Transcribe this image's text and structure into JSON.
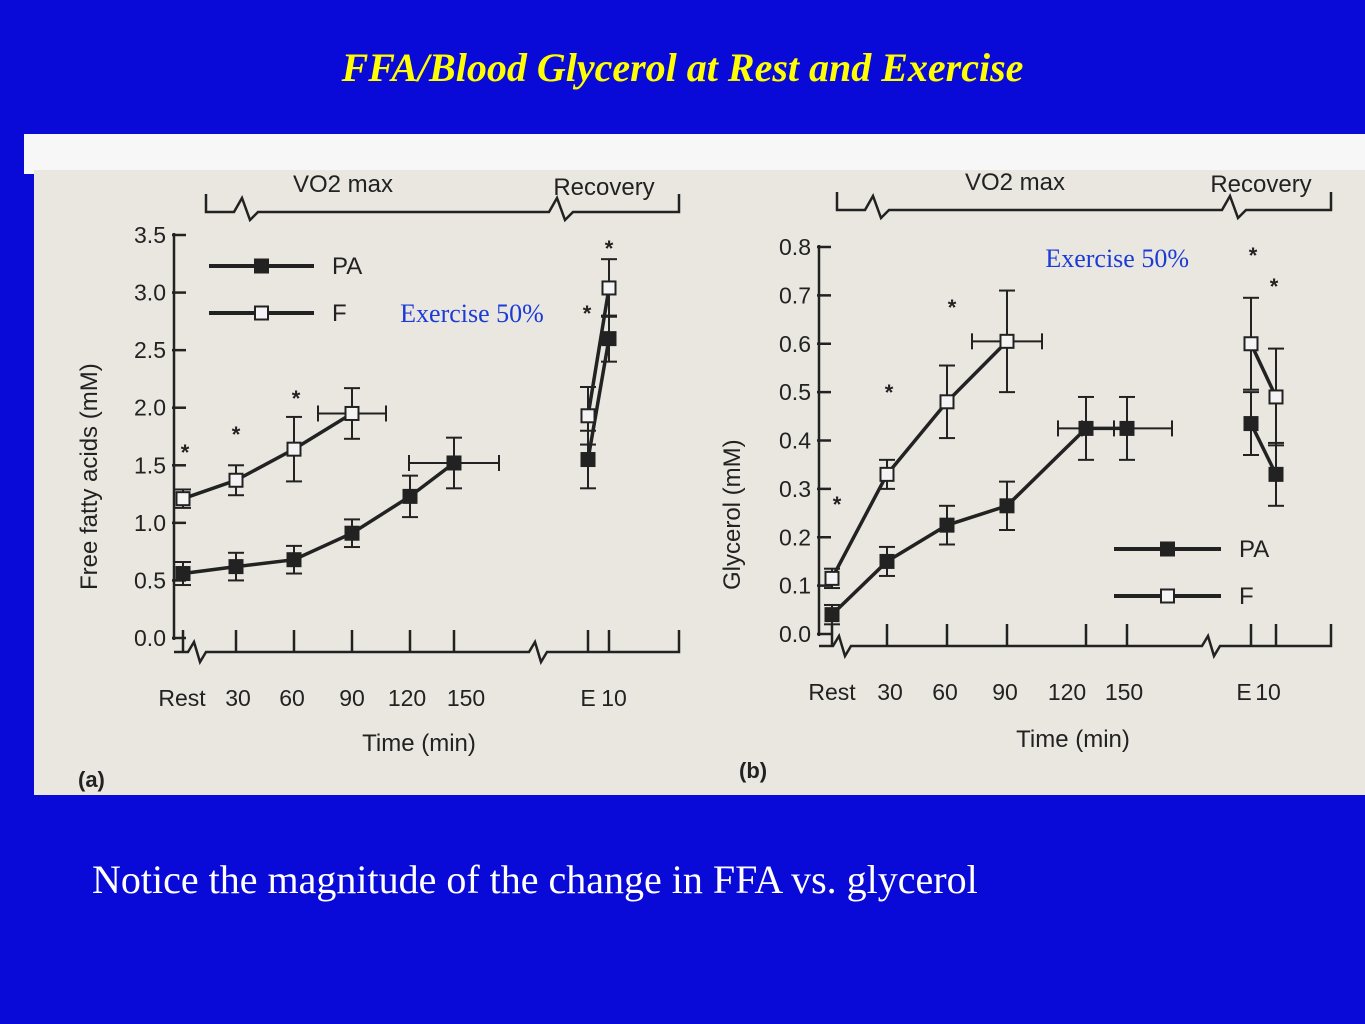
{
  "slide": {
    "title": "FFA/Blood Glycerol at Rest and Exercise",
    "caption": "Notice the magnitude of the change in FFA vs. glycerol",
    "colors": {
      "background": "#0a0ad8",
      "title": "#ffff00",
      "annotation": "#1c3bd6",
      "caption": "#ffffff",
      "figure_bg": "#e9e7e0"
    }
  },
  "chart_data": [
    {
      "type": "line",
      "panel_label": "(a)",
      "header_left": "VO2 max",
      "header_right": "Recovery",
      "annotation": "Exercise 50%",
      "xlabel": "Time (min)",
      "ylabel": "Free fatty acids (mM)",
      "ylim": [
        0,
        3.5
      ],
      "yticks": [
        "0.0",
        "0.5",
        "1.0",
        "1.5",
        "2.0",
        "2.5",
        "3.0",
        "3.5"
      ],
      "xticks": [
        "Rest",
        "30",
        "60",
        "90",
        "120",
        "150",
        "E",
        "10"
      ],
      "series": [
        {
          "name": "PA",
          "marker": "filled-square",
          "points": [
            {
              "x": "Rest",
              "y": 0.56,
              "err": 0.1
            },
            {
              "x": "30",
              "y": 0.62,
              "err": 0.12
            },
            {
              "x": "60",
              "y": 0.68,
              "err": 0.12
            },
            {
              "x": "90",
              "y": 0.91,
              "err": 0.12
            },
            {
              "x": "120",
              "y": 1.23,
              "err": 0.18
            },
            {
              "x": "150",
              "y": 1.52,
              "err": 0.22
            },
            {
              "x": "E",
              "y": 1.55,
              "err": 0.25
            },
            {
              "x": "10",
              "y": 2.6,
              "err": 0.2
            }
          ]
        },
        {
          "name": "F",
          "marker": "open-square",
          "points": [
            {
              "x": "Rest",
              "y": 1.21,
              "err": 0.08
            },
            {
              "x": "30",
              "y": 1.37,
              "err": 0.13
            },
            {
              "x": "60",
              "y": 1.64,
              "err": 0.28
            },
            {
              "x": "90",
              "y": 1.95,
              "err": 0.22
            },
            {
              "x": "E",
              "y": 1.93,
              "err": 0.25
            },
            {
              "x": "10",
              "y": 3.04,
              "err": 0.25
            }
          ]
        }
      ],
      "significance_marks": [
        "*",
        "*",
        "*",
        "*",
        "*"
      ],
      "legend": {
        "placement": "top-left",
        "entries": [
          "PA",
          "F"
        ]
      }
    },
    {
      "type": "line",
      "panel_label": "(b)",
      "header_left": "VO2 max",
      "header_right": "Recovery",
      "annotation": "Exercise 50%",
      "xlabel": "Time (min)",
      "ylabel": "Glycerol (mM)",
      "ylim": [
        0,
        0.8
      ],
      "yticks": [
        "0.0",
        "0.1",
        "0.2",
        "0.3",
        "0.4",
        "0.5",
        "0.6",
        "0.7",
        "0.8"
      ],
      "xticks": [
        "Rest",
        "30",
        "60",
        "90",
        "120",
        "150",
        "E",
        "10"
      ],
      "series": [
        {
          "name": "PA",
          "marker": "filled-square",
          "points": [
            {
              "x": "Rest",
              "y": 0.04,
              "err": 0.02
            },
            {
              "x": "30",
              "y": 0.15,
              "err": 0.03
            },
            {
              "x": "60",
              "y": 0.225,
              "err": 0.04
            },
            {
              "x": "90",
              "y": 0.265,
              "err": 0.05
            },
            {
              "x": "120",
              "y": 0.425,
              "err": 0.065
            },
            {
              "x": "150",
              "y": 0.425,
              "err": 0.065
            },
            {
              "x": "E",
              "y": 0.435,
              "err": 0.065
            },
            {
              "x": "10",
              "y": 0.33,
              "err": 0.065
            }
          ]
        },
        {
          "name": "F",
          "marker": "open-square",
          "points": [
            {
              "x": "Rest",
              "y": 0.115,
              "err": 0.02
            },
            {
              "x": "30",
              "y": 0.33,
              "err": 0.03
            },
            {
              "x": "60",
              "y": 0.48,
              "err": 0.075
            },
            {
              "x": "90",
              "y": 0.605,
              "err": 0.105
            },
            {
              "x": "E",
              "y": 0.6,
              "err": 0.095
            },
            {
              "x": "10",
              "y": 0.49,
              "err": 0.1
            }
          ]
        }
      ],
      "significance_marks": [
        "*",
        "*",
        "*",
        "*",
        "*"
      ],
      "legend": {
        "placement": "bottom-right",
        "entries": [
          "PA",
          "F"
        ]
      }
    }
  ]
}
